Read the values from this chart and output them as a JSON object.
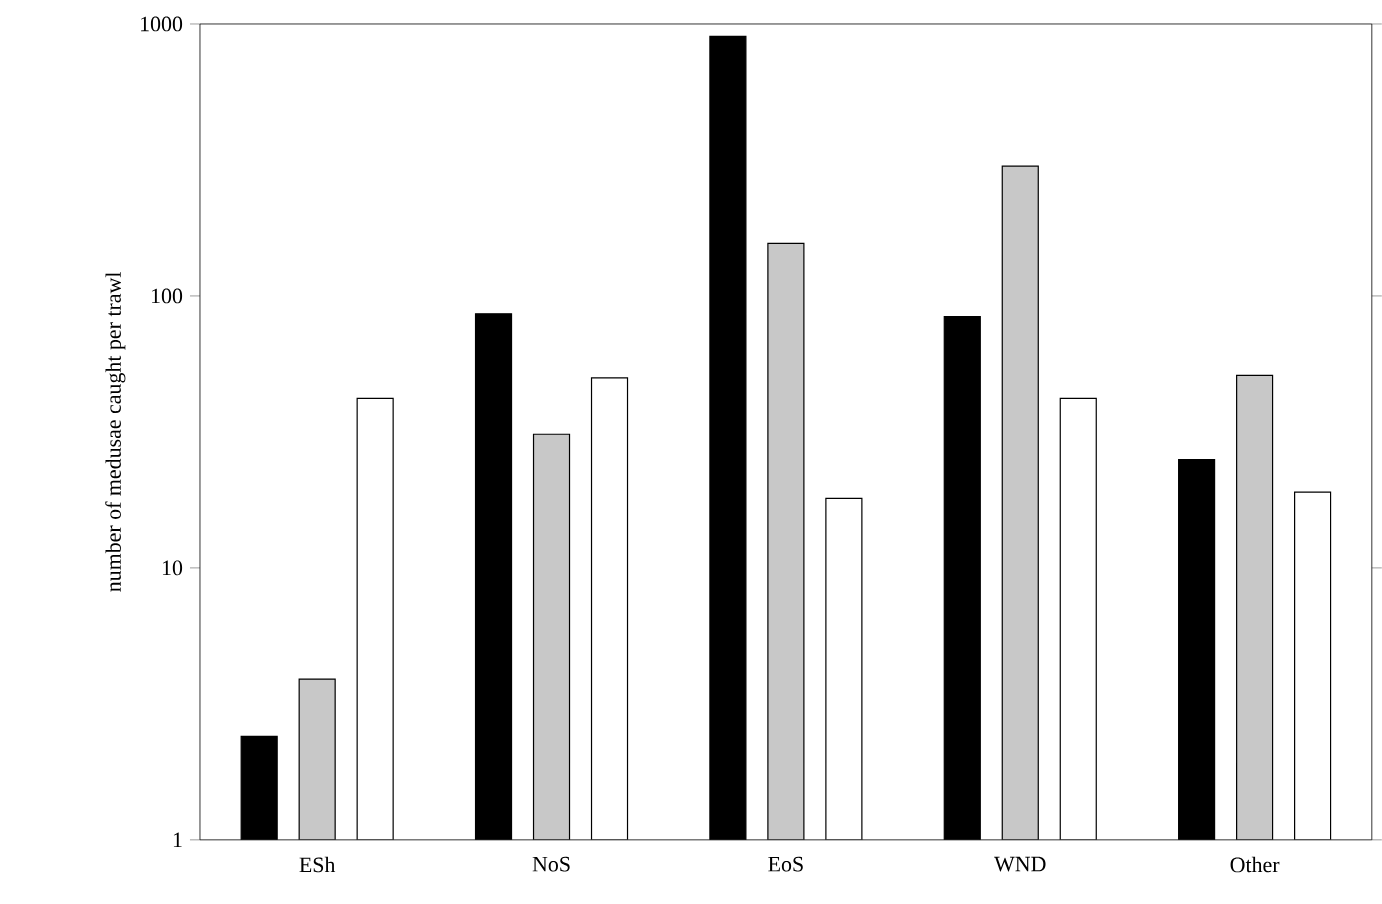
{
  "chart_data": {
    "type": "bar",
    "ylabel": "number of medusae caught per trawl",
    "log": true,
    "ylim": [
      1,
      1000
    ],
    "yticks": [
      1,
      10,
      100,
      1000
    ],
    "categories": [
      "ESh",
      "NoS",
      "EoS",
      "WND",
      "Other"
    ],
    "series": [
      {
        "color": "#000000",
        "values": [
          2.4,
          86,
          900,
          84,
          25
        ]
      },
      {
        "color": "#c8c8c8",
        "values": [
          3.9,
          31,
          156,
          300,
          51
        ]
      },
      {
        "color": "#ffffff",
        "values": [
          42,
          50,
          18,
          42,
          19
        ]
      }
    ]
  }
}
